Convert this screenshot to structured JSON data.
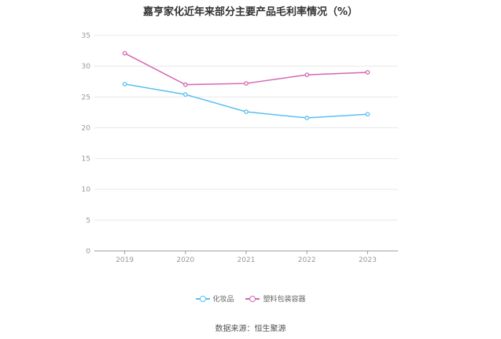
{
  "chart_data": {
    "type": "line",
    "title": "嘉亨家化近年来部分主要产品毛利率情况（%）",
    "categories": [
      "2019",
      "2020",
      "2021",
      "2022",
      "2023"
    ],
    "series": [
      {
        "name": "化妆品",
        "color": "#5bc0f0",
        "values": [
          27.1,
          25.4,
          22.6,
          21.6,
          22.2
        ]
      },
      {
        "name": "塑料包装容器",
        "color": "#d466b3",
        "values": [
          32.1,
          27.0,
          27.2,
          28.6,
          29.0
        ]
      }
    ],
    "ylim": [
      0,
      35
    ],
    "yticks": [
      "0",
      "5",
      "10",
      "15",
      "20",
      "25",
      "30",
      "35"
    ],
    "grid": true,
    "legend_position": "bottom"
  },
  "source": "数据来源：恒生聚源"
}
